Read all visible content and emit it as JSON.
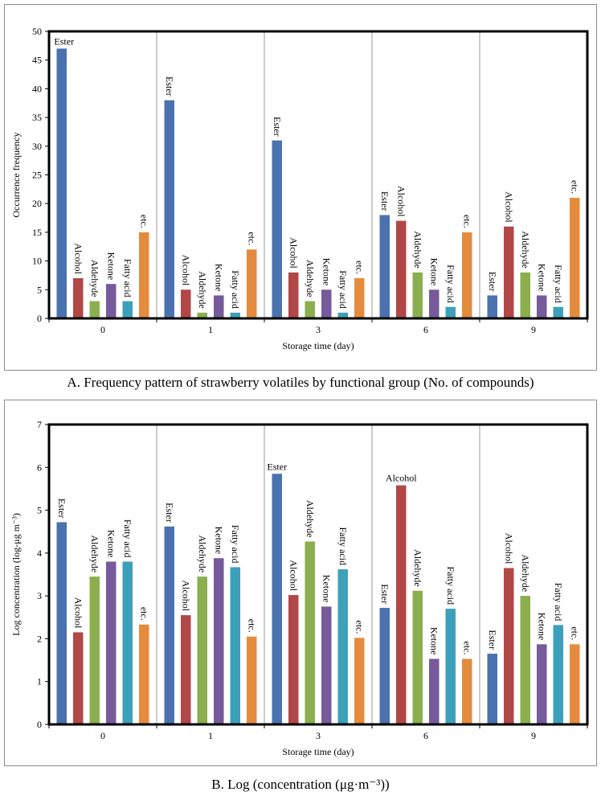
{
  "captions": {
    "a": "A. Frequency pattern of strawberry volatiles by functional group (No. of compounds)",
    "b": "B. Log (concentration (μg·m⁻³))"
  },
  "colors": {
    "Ester": "#4A72AE",
    "Alcohol": "#B14747",
    "Aldehyde": "#8BAE4E",
    "Ketone": "#765A9C",
    "Fatty acid": "#3DA0BA",
    "etc.": "#E58B3D"
  },
  "chart_data": [
    {
      "type": "bar",
      "title": "",
      "xlabel": "Storage  time (day)",
      "ylabel": "Occurrence frequency",
      "ylim": [
        0,
        50
      ],
      "yticks": [
        0,
        5,
        10,
        15,
        20,
        25,
        30,
        35,
        40,
        45,
        50
      ],
      "categories": [
        "0",
        "1",
        "3",
        "6",
        "9"
      ],
      "series": [
        {
          "name": "Ester",
          "values": [
            47,
            38,
            31,
            18,
            4
          ]
        },
        {
          "name": "Alcohol",
          "values": [
            7,
            5,
            8,
            17,
            16
          ]
        },
        {
          "name": "Aldehyde",
          "values": [
            3,
            1,
            3,
            8,
            8
          ]
        },
        {
          "name": "Ketone",
          "values": [
            6,
            4,
            5,
            5,
            4
          ]
        },
        {
          "name": "Fatty acid",
          "values": [
            3,
            1,
            1,
            2,
            2
          ]
        },
        {
          "name": "etc.",
          "values": [
            15,
            12,
            7,
            15,
            21
          ]
        }
      ],
      "grid": false,
      "legend": "none"
    },
    {
      "type": "bar",
      "title": "",
      "xlabel": "Storage  time (day)",
      "ylabel": "Log concentration (log-μg m⁻³)",
      "ylim": [
        0,
        7
      ],
      "yticks": [
        0,
        1,
        2,
        3,
        4,
        5,
        6,
        7
      ],
      "categories": [
        "0",
        "1",
        "3",
        "6",
        "9"
      ],
      "series": [
        {
          "name": "Ester",
          "values": [
            4.72,
            4.62,
            5.85,
            2.72,
            1.65
          ]
        },
        {
          "name": "Alcohol",
          "values": [
            2.15,
            2.55,
            3.02,
            5.58,
            3.65
          ]
        },
        {
          "name": "Aldehyde",
          "values": [
            3.45,
            3.45,
            4.27,
            3.12,
            3.0
          ]
        },
        {
          "name": "Ketone",
          "values": [
            3.8,
            3.88,
            2.75,
            1.53,
            1.87
          ]
        },
        {
          "name": "Fatty acid",
          "values": [
            3.8,
            3.67,
            3.62,
            2.7,
            2.32
          ]
        },
        {
          "name": "etc.",
          "values": [
            2.33,
            2.05,
            2.02,
            1.53,
            1.87
          ]
        }
      ],
      "grid": false,
      "legend": "none"
    }
  ]
}
